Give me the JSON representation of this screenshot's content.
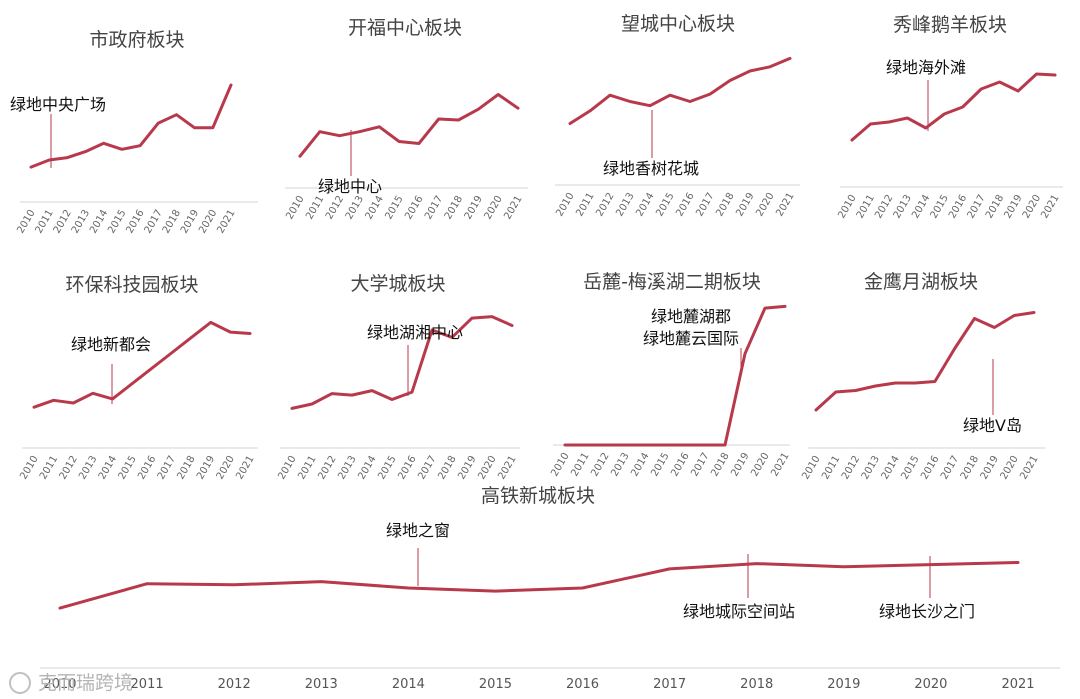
{
  "chart_data": [
    {
      "type": "line",
      "title": "市政府板块",
      "x": [
        "2010",
        "2011",
        "2012",
        "2013",
        "2014",
        "2015",
        "2016",
        "2017",
        "2018",
        "2019",
        "2020",
        "2021"
      ],
      "values": [
        10,
        16,
        18,
        23,
        30,
        25,
        28,
        47,
        54,
        43,
        43,
        79
      ],
      "ylim": [
        0,
        100
      ],
      "annotations": [
        {
          "text": "绿地中央广场",
          "x": "2012"
        }
      ]
    },
    {
      "type": "line",
      "title": "开福中心板块",
      "x": [
        "2010",
        "2011",
        "2012",
        "2013",
        "2014",
        "2015",
        "2016",
        "2017",
        "2018",
        "2019",
        "2020",
        "2021"
      ],
      "values": [
        12,
        37,
        33,
        37,
        42,
        27,
        25,
        50,
        49,
        60,
        75,
        61
      ],
      "ylim": [
        0,
        100
      ],
      "annotations": [
        {
          "text": "绿地中心",
          "x": "2013"
        }
      ]
    },
    {
      "type": "line",
      "title": "望城中心板块",
      "x": [
        "2010",
        "2011",
        "2012",
        "2013",
        "2014",
        "2015",
        "2016",
        "2017",
        "2018",
        "2019",
        "2020",
        "2021"
      ],
      "values": [
        30,
        42,
        57,
        51,
        47,
        57,
        51,
        58,
        71,
        80,
        84,
        92
      ],
      "ylim": [
        0,
        100
      ],
      "annotations": [
        {
          "text": "绿地香树花城",
          "x": "2014"
        }
      ]
    },
    {
      "type": "line",
      "title": "秀峰鹅羊板块",
      "x": [
        "2010",
        "2011",
        "2012",
        "2013",
        "2014",
        "2015",
        "2016",
        "2017",
        "2018",
        "2019",
        "2020",
        "2021"
      ],
      "values": [
        20,
        36,
        38,
        42,
        32,
        46,
        53,
        71,
        78,
        69,
        86,
        85
      ],
      "ylim": [
        0,
        100
      ],
      "annotations": [
        {
          "text": "绿地海外滩",
          "x": "2014"
        }
      ]
    },
    {
      "type": "line",
      "title": "环保科技园板块",
      "x": [
        "2010",
        "2011",
        "2012",
        "2013",
        "2014",
        "2015",
        "2016",
        "2017",
        "2018",
        "2019",
        "2020",
        "2021"
      ],
      "values": [
        20,
        25,
        23,
        30,
        26,
        37,
        48,
        59,
        70,
        81,
        74,
        73
      ],
      "ylim": [
        0,
        100
      ],
      "annotations": [
        {
          "text": "绿地新都会",
          "x": "2014"
        }
      ]
    },
    {
      "type": "line",
      "title": "大学城板块",
      "x": [
        "2010",
        "2011",
        "2012",
        "2013",
        "2014",
        "2015",
        "2016",
        "2017",
        "2018",
        "2019",
        "2020",
        "2021"
      ],
      "values": [
        20,
        23,
        30,
        29,
        32,
        26,
        31,
        73,
        68,
        81,
        82,
        76
      ],
      "ylim": [
        0,
        100
      ],
      "annotations": [
        {
          "text": "绿地湖湘中心",
          "x": "2016"
        }
      ]
    },
    {
      "type": "line",
      "title": "岳麓-梅溪湖二期板块",
      "x": [
        "2010",
        "2011",
        "2012",
        "2013",
        "2014",
        "2015",
        "2016",
        "2017",
        "2018",
        "2019",
        "2020",
        "2021"
      ],
      "values": [
        0,
        0,
        0,
        0,
        0,
        0,
        0,
        0,
        0,
        56,
        84,
        85
      ],
      "ylim": [
        0,
        100
      ],
      "annotations": [
        {
          "text": "绿地麓湖郡",
          "x": "2019"
        },
        {
          "text": "绿地麓云国际",
          "x": "2019"
        }
      ]
    },
    {
      "type": "line",
      "title": "金鹰月湖板块",
      "x": [
        "2010",
        "2011",
        "2012",
        "2013",
        "2014",
        "2015",
        "2016",
        "2017",
        "2018",
        "2019",
        "2020",
        "2021"
      ],
      "values": [
        20,
        32,
        33,
        36,
        38,
        38,
        39,
        61,
        81,
        75,
        83,
        85
      ],
      "ylim": [
        0,
        100
      ],
      "annotations": [
        {
          "text": "绿地V岛",
          "x": "2019"
        }
      ]
    },
    {
      "type": "line",
      "title": "高铁新城板块",
      "x": [
        "2010",
        "2011",
        "2012",
        "2013",
        "2014",
        "2015",
        "2016",
        "2017",
        "2018",
        "2019",
        "2020",
        "2021"
      ],
      "values": [
        15,
        38,
        37,
        40,
        34,
        31,
        34,
        52,
        57,
        54,
        56,
        58
      ],
      "ylim": [
        0,
        100
      ],
      "annotations": [
        {
          "text": "绿地之窗",
          "x": "2014"
        },
        {
          "text": "绿地城际空间站",
          "x": "2018"
        },
        {
          "text": "绿地长沙之门",
          "x": "2020"
        }
      ]
    }
  ],
  "watermark": "克而瑞跨境",
  "colors": {
    "line": "#B8394B",
    "axis": "#d4d4d4"
  }
}
